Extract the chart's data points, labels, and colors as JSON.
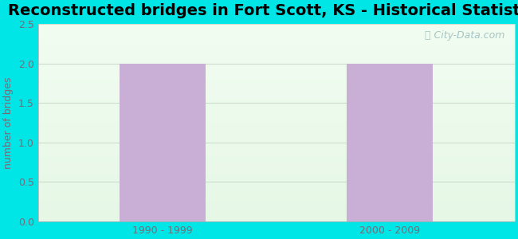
{
  "title": "Reconstructed bridges in Fort Scott, KS - Historical Statistics",
  "categories": [
    "1990 - 1999",
    "2000 - 2009"
  ],
  "values": [
    2,
    2
  ],
  "bar_color": "#c9aed6",
  "ylabel": "number of bridges",
  "ylim": [
    0,
    2.5
  ],
  "yticks": [
    0,
    0.5,
    1,
    1.5,
    2,
    2.5
  ],
  "plot_bg_top": "#e8f5e8",
  "plot_bg_bottom": "#f5fff5",
  "outer_bg_color": "#00e5e5",
  "title_fontsize": 14,
  "axis_label_color": "#7a6a7a",
  "tick_label_color": "#7a6a7a",
  "grid_color": "#ccddcc",
  "watermark": "City-Data.com",
  "bar_width": 0.38
}
